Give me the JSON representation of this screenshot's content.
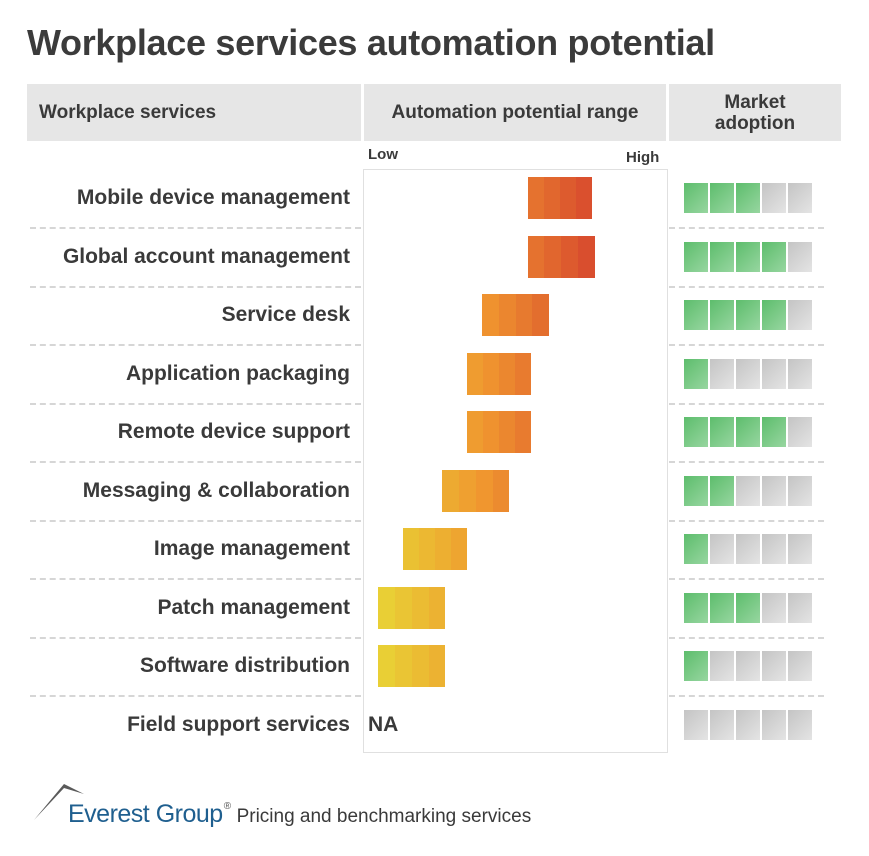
{
  "title": "Workplace services automation potential",
  "headers": {
    "services": "Workplace services",
    "range": "Automation potential range",
    "adoption": "Market adoption"
  },
  "chart_data": {
    "type": "bar",
    "subtype": "floating-range",
    "title": "Workplace services automation potential",
    "axis": {
      "low_label": "Low",
      "high_label": "High",
      "range": [
        0,
        100
      ]
    },
    "categories": [
      "Mobile device management",
      "Global account management",
      "Service desk",
      "Application packaging",
      "Remote device support",
      "Messaging & collaboration",
      "Image management",
      "Patch management",
      "Software distribution",
      "Field support services"
    ],
    "ranges": [
      [
        54,
        75
      ],
      [
        54,
        76
      ],
      [
        39,
        61
      ],
      [
        34,
        55
      ],
      [
        34,
        55
      ],
      [
        26,
        48
      ],
      [
        13,
        34
      ],
      [
        5,
        27
      ],
      [
        5,
        27
      ],
      null
    ],
    "range_labels": [
      "",
      "",
      "",
      "",
      "",
      "",
      "",
      "",
      "",
      "NA"
    ],
    "market_adoption": {
      "max": 5,
      "values": [
        3,
        4,
        4,
        1,
        4,
        2,
        1,
        3,
        1,
        0
      ]
    },
    "colors": {
      "low": "#e8d435",
      "mid": "#f0962f",
      "high": "#d84a2e",
      "adoption_on": "#5dbd6c",
      "adoption_off": "#cccccc"
    },
    "grid": false
  },
  "footer": {
    "brand": "Everest Group",
    "registered": "®",
    "tagline": "Pricing and benchmarking services"
  }
}
